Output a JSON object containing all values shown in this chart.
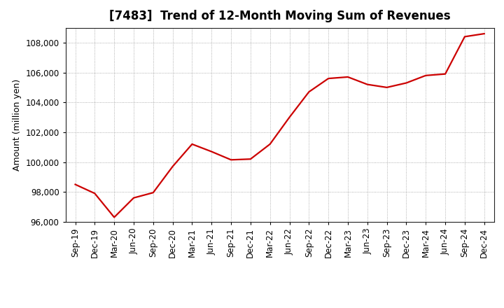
{
  "title": "[7483]  Trend of 12-Month Moving Sum of Revenues",
  "ylabel": "Amount (million yen)",
  "line_color": "#cc0000",
  "background_color": "#ffffff",
  "grid_color": "#999999",
  "ylim": [
    96000,
    109000
  ],
  "yticks": [
    96000,
    98000,
    100000,
    102000,
    104000,
    106000,
    108000
  ],
  "x_labels": [
    "Sep-19",
    "Dec-19",
    "Mar-20",
    "Jun-20",
    "Sep-20",
    "Dec-20",
    "Mar-21",
    "Jun-21",
    "Sep-21",
    "Dec-21",
    "Mar-22",
    "Jun-22",
    "Sep-22",
    "Dec-22",
    "Mar-23",
    "Jun-23",
    "Sep-23",
    "Dec-23",
    "Mar-24",
    "Jun-24",
    "Sep-24",
    "Dec-24"
  ],
  "values": [
    98500,
    97900,
    96300,
    97600,
    97950,
    99700,
    101200,
    100700,
    100150,
    100200,
    101200,
    103000,
    104700,
    105600,
    105700,
    105200,
    105000,
    105300,
    105800,
    105900,
    108400,
    108600
  ],
  "title_fontsize": 12,
  "ylabel_fontsize": 9,
  "tick_fontsize": 8.5,
  "linewidth": 1.6
}
